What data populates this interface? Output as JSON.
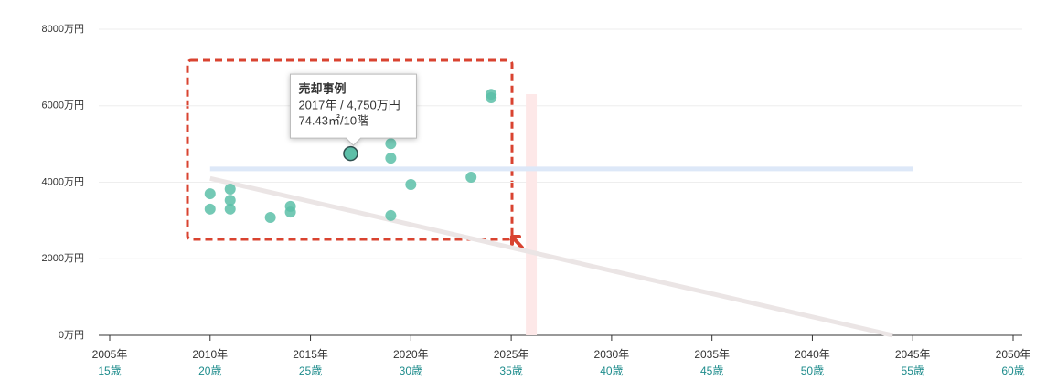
{
  "chart_data": {
    "type": "scatter",
    "series": [
      {
        "color": "#5cbfa8",
        "x": [
          2010,
          2010,
          2011,
          2011,
          2011,
          2013,
          2014,
          2014,
          2017,
          2019,
          2019,
          2019,
          2020,
          2023,
          2024,
          2024
        ],
        "values": [
          3700,
          3300,
          3820,
          3530,
          3300,
          3080,
          3370,
          3220,
          4750,
          5010,
          4630,
          3130,
          3940,
          4130,
          6300,
          6210
        ]
      }
    ],
    "xlim": [
      2005,
      2050
    ],
    "xticks": [
      {
        "value": 2005,
        "label": "2005年"
      },
      {
        "value": 2010,
        "label": "2010年"
      },
      {
        "value": 2015,
        "label": "2015年"
      },
      {
        "value": 2020,
        "label": "2020年"
      },
      {
        "value": 2025,
        "label": "2025年"
      },
      {
        "value": 2030,
        "label": "2030年"
      },
      {
        "value": 2035,
        "label": "2035年"
      },
      {
        "value": 2040,
        "label": "2040年"
      },
      {
        "value": 2045,
        "label": "2045年"
      },
      {
        "value": 2050,
        "label": "2050年"
      }
    ],
    "xtick_ages": [
      "15歳",
      "20歳",
      "25歳",
      "30歳",
      "35歳",
      "40歳",
      "45歳",
      "50歳",
      "55歳",
      "60歳"
    ],
    "ylim": [
      0,
      8000
    ],
    "yticks": [
      {
        "value": 0,
        "label": "0万円"
      },
      {
        "value": 2000,
        "label": "2000万円"
      },
      {
        "value": 4000,
        "label": "4000万円"
      },
      {
        "value": 6000,
        "label": "6000万円"
      },
      {
        "value": 8000,
        "label": "8000万円"
      }
    ],
    "grid": true,
    "highlight": 8,
    "tooltip": {
      "title": "売却事例",
      "lines": [
        "2017年 / 4,750万円",
        "74.43㎡/10階"
      ]
    },
    "reference_band": {
      "y": 4350,
      "x": [
        2010,
        2045
      ],
      "color": "#dde8f8"
    },
    "trend_line": {
      "x": [
        2010,
        2044
      ],
      "y": [
        4100,
        0
      ],
      "color": "#ebe5e5"
    },
    "marker_x": {
      "value": 2026,
      "color": "#fde8e8"
    }
  }
}
